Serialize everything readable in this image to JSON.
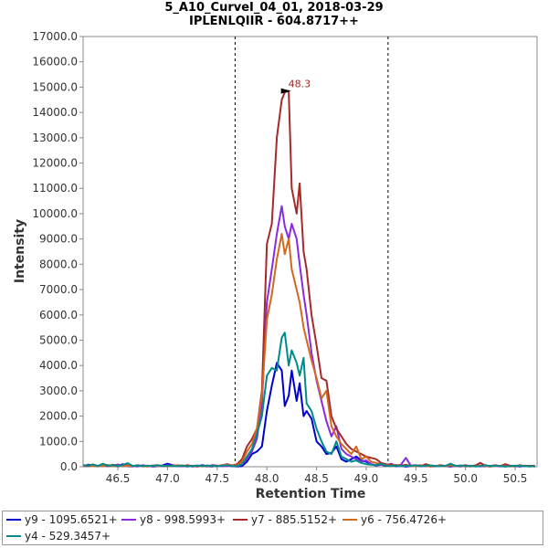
{
  "chart_data": {
    "type": "line",
    "title": "5_A10_CurveI_04_01, 2018-03-29",
    "subtitle": "IPLENLQIIR - 604.8717++",
    "xlabel": "Retention Time",
    "ylabel": "Intensity",
    "xlim": [
      46.15,
      50.72
    ],
    "ylim": [
      0,
      17000
    ],
    "xticks": [
      46.5,
      47.0,
      47.5,
      48.0,
      48.5,
      49.0,
      49.5,
      50.0,
      50.5
    ],
    "yticks": [
      0,
      1000,
      2000,
      3000,
      4000,
      5000,
      6000,
      7000,
      8000,
      9000,
      10000,
      11000,
      12000,
      13000,
      14000,
      15000,
      16000,
      17000
    ],
    "xtick_labels": [
      "46.5",
      "47.0",
      "47.5",
      "48.0",
      "48.5",
      "49.0",
      "49.5",
      "50.0",
      "50.5"
    ],
    "ytick_labels": [
      "0.0",
      "1000.0",
      "2000.0",
      "3000.0",
      "4000.0",
      "5000.0",
      "6000.0",
      "7000.0",
      "8000.0",
      "9000.0",
      "10000.0",
      "11000.0",
      "12000.0",
      "13000.0",
      "14000.0",
      "15000.0",
      "16000.0",
      "17000.0"
    ],
    "vlines": [
      47.68,
      49.22
    ],
    "annotation": {
      "text": "48.3",
      "x": 48.28,
      "y": 14850
    },
    "series": [
      {
        "name": "y9 - 1095.6521+",
        "color": "#0000cc",
        "x": [
          46.15,
          46.2,
          46.25,
          46.3,
          46.35,
          46.4,
          46.45,
          46.5,
          46.55,
          46.6,
          46.65,
          46.7,
          46.75,
          46.8,
          46.85,
          46.9,
          46.95,
          47.0,
          47.05,
          47.1,
          47.15,
          47.2,
          47.25,
          47.3,
          47.35,
          47.4,
          47.45,
          47.5,
          47.55,
          47.6,
          47.65,
          47.7,
          47.75,
          47.8,
          47.85,
          47.9,
          47.95,
          48.0,
          48.05,
          48.1,
          48.15,
          48.18,
          48.22,
          48.25,
          48.3,
          48.33,
          48.37,
          48.4,
          48.45,
          48.5,
          48.55,
          48.6,
          48.65,
          48.7,
          48.75,
          48.8,
          48.85,
          48.9,
          48.95,
          49.0,
          49.05,
          49.1,
          49.15,
          49.2,
          49.25,
          49.3,
          49.35,
          49.4,
          49.45,
          49.5,
          49.55,
          49.6,
          49.65,
          49.7,
          49.75,
          49.8,
          49.85,
          49.9,
          49.95,
          50.0,
          50.05,
          50.1,
          50.15,
          50.2,
          50.25,
          50.3,
          50.35,
          50.4,
          50.45,
          50.5,
          50.55,
          50.6,
          50.65,
          50.7
        ],
        "values": [
          20,
          80,
          50,
          30,
          90,
          40,
          60,
          20,
          100,
          30,
          10,
          60,
          20,
          40,
          10,
          20,
          50,
          120,
          60,
          30,
          20,
          40,
          10,
          30,
          60,
          20,
          10,
          40,
          30,
          60,
          20,
          10,
          30,
          200,
          500,
          600,
          800,
          2200,
          3200,
          4100,
          3800,
          2400,
          2800,
          3800,
          2600,
          3300,
          2000,
          2200,
          1900,
          1000,
          800,
          500,
          550,
          800,
          300,
          200,
          300,
          400,
          250,
          200,
          100,
          50,
          80,
          30,
          60,
          20,
          40,
          10,
          30,
          60,
          20,
          40,
          10,
          20,
          50,
          30,
          10,
          40,
          20,
          30,
          10,
          50,
          30,
          20,
          10,
          40,
          20,
          10,
          30,
          20,
          10,
          40,
          20,
          30
        ]
      },
      {
        "name": "y8 - 998.5993+",
        "color": "#8a2be2",
        "x": [
          46.15,
          46.2,
          46.25,
          46.3,
          46.35,
          46.4,
          46.45,
          46.5,
          46.55,
          46.6,
          46.65,
          46.7,
          46.75,
          46.8,
          46.85,
          46.9,
          46.95,
          47.0,
          47.05,
          47.1,
          47.15,
          47.2,
          47.25,
          47.3,
          47.35,
          47.4,
          47.45,
          47.5,
          47.55,
          47.6,
          47.65,
          47.7,
          47.75,
          47.8,
          47.85,
          47.9,
          47.95,
          48.0,
          48.05,
          48.1,
          48.15,
          48.18,
          48.22,
          48.25,
          48.3,
          48.33,
          48.37,
          48.4,
          48.45,
          48.5,
          48.55,
          48.6,
          48.65,
          48.7,
          48.75,
          48.8,
          48.85,
          48.9,
          48.95,
          49.0,
          49.05,
          49.1,
          49.15,
          49.2,
          49.25,
          49.3,
          49.35,
          49.4,
          49.45,
          49.5,
          49.55,
          49.6,
          49.65,
          49.7,
          49.75,
          49.8,
          49.85,
          49.9,
          49.95,
          50.0,
          50.05,
          50.1,
          50.15,
          50.2,
          50.25,
          50.3,
          50.35,
          50.4,
          50.45,
          50.5,
          50.55,
          50.6,
          50.65,
          50.7
        ],
        "values": [
          30,
          50,
          80,
          20,
          60,
          30,
          40,
          90,
          20,
          50,
          30,
          10,
          60,
          20,
          30,
          40,
          20,
          60,
          40,
          20,
          30,
          10,
          40,
          20,
          30,
          10,
          60,
          40,
          20,
          30,
          50,
          20,
          100,
          300,
          600,
          1100,
          2500,
          6500,
          7800,
          9200,
          10300,
          9500,
          9000,
          9600,
          9000,
          8000,
          6800,
          6000,
          4500,
          3400,
          2600,
          1800,
          1200,
          1600,
          700,
          500,
          400,
          300,
          200,
          250,
          100,
          60,
          80,
          50,
          120,
          40,
          80,
          350,
          40,
          60,
          30,
          20,
          50,
          30,
          40,
          20,
          60,
          30,
          10,
          40,
          20,
          30,
          10,
          50,
          20,
          40,
          10,
          30,
          20,
          10,
          40,
          20,
          30,
          10
        ]
      },
      {
        "name": "y7 - 885.5152+",
        "color": "#a52a2a",
        "x": [
          46.15,
          46.2,
          46.25,
          46.3,
          46.35,
          46.4,
          46.45,
          46.5,
          46.55,
          46.6,
          46.65,
          46.7,
          46.75,
          46.8,
          46.85,
          46.9,
          46.95,
          47.0,
          47.05,
          47.1,
          47.15,
          47.2,
          47.25,
          47.3,
          47.35,
          47.4,
          47.45,
          47.5,
          47.55,
          47.6,
          47.65,
          47.7,
          47.75,
          47.8,
          47.85,
          47.9,
          47.95,
          48.0,
          48.05,
          48.1,
          48.15,
          48.18,
          48.22,
          48.25,
          48.3,
          48.33,
          48.37,
          48.4,
          48.45,
          48.5,
          48.55,
          48.6,
          48.65,
          48.7,
          48.75,
          48.8,
          48.85,
          48.9,
          48.95,
          49.0,
          49.05,
          49.1,
          49.15,
          49.2,
          49.25,
          49.3,
          49.35,
          49.4,
          49.45,
          49.5,
          49.55,
          49.6,
          49.65,
          49.7,
          49.75,
          49.8,
          49.85,
          49.9,
          49.95,
          50.0,
          50.05,
          50.1,
          50.15,
          50.2,
          50.25,
          50.3,
          50.35,
          50.4,
          50.45,
          50.5,
          50.55,
          50.6,
          50.65,
          50.7
        ],
        "values": [
          40,
          20,
          60,
          30,
          50,
          20,
          80,
          30,
          40,
          60,
          20,
          50,
          30,
          10,
          40,
          60,
          20,
          30,
          50,
          40,
          20,
          60,
          30,
          10,
          40,
          20,
          50,
          30,
          60,
          100,
          50,
          100,
          300,
          800,
          1100,
          1500,
          3000,
          8800,
          9600,
          13000,
          14500,
          14800,
          14850,
          11000,
          10000,
          11200,
          8500,
          7800,
          6000,
          4800,
          3500,
          3400,
          2000,
          1500,
          1200,
          900,
          700,
          600,
          500,
          400,
          350,
          300,
          150,
          100,
          80,
          60,
          40,
          80,
          30,
          50,
          20,
          100,
          40,
          30,
          60,
          20,
          80,
          40,
          30,
          60,
          20,
          50,
          150,
          40,
          30,
          60,
          20,
          100,
          40,
          30,
          60,
          20,
          40,
          30
        ]
      },
      {
        "name": "y6 - 756.4726+",
        "color": "#d2691e",
        "x": [
          46.15,
          46.2,
          46.25,
          46.3,
          46.35,
          46.4,
          46.45,
          46.5,
          46.55,
          46.6,
          46.65,
          46.7,
          46.75,
          46.8,
          46.85,
          46.9,
          46.95,
          47.0,
          47.05,
          47.1,
          47.15,
          47.2,
          47.25,
          47.3,
          47.35,
          47.4,
          47.45,
          47.5,
          47.55,
          47.6,
          47.65,
          47.7,
          47.75,
          47.8,
          47.85,
          47.9,
          47.95,
          48.0,
          48.05,
          48.1,
          48.15,
          48.18,
          48.22,
          48.25,
          48.3,
          48.33,
          48.37,
          48.4,
          48.45,
          48.5,
          48.55,
          48.6,
          48.65,
          48.7,
          48.75,
          48.8,
          48.85,
          48.9,
          48.95,
          49.0,
          49.05,
          49.1,
          49.15,
          49.2,
          49.25,
          49.3,
          49.35,
          49.4,
          49.45,
          49.5,
          49.55,
          49.6,
          49.65,
          49.7,
          49.75,
          49.8,
          49.85,
          49.9,
          49.95,
          50.0,
          50.05,
          50.1,
          50.15,
          50.2,
          50.25,
          50.3,
          50.35,
          50.4,
          50.45,
          50.5,
          50.55,
          50.6,
          50.65,
          50.7
        ],
        "values": [
          30,
          60,
          20,
          40,
          30,
          70,
          20,
          50,
          30,
          40,
          20,
          60,
          10,
          30,
          50,
          20,
          40,
          30,
          20,
          60,
          40,
          20,
          30,
          50,
          10,
          40,
          20,
          30,
          60,
          80,
          40,
          60,
          200,
          600,
          900,
          1500,
          2800,
          5800,
          6800,
          8200,
          9200,
          8400,
          9000,
          7800,
          7000,
          6500,
          5500,
          5000,
          4200,
          3500,
          2700,
          3000,
          1600,
          1200,
          900,
          700,
          500,
          800,
          300,
          400,
          200,
          150,
          100,
          60,
          40,
          80,
          30,
          50,
          20,
          40,
          60,
          30,
          10,
          40,
          20,
          30,
          50,
          20,
          40,
          10,
          30,
          20,
          50,
          30,
          10,
          40,
          20,
          30,
          10,
          20,
          40,
          30,
          20,
          10
        ]
      },
      {
        "name": "y4 - 529.3457+",
        "color": "#008b8b",
        "x": [
          46.15,
          46.2,
          46.25,
          46.3,
          46.35,
          46.4,
          46.45,
          46.5,
          46.55,
          46.6,
          46.65,
          46.7,
          46.75,
          46.8,
          46.85,
          46.9,
          46.95,
          47.0,
          47.05,
          47.1,
          47.15,
          47.2,
          47.25,
          47.3,
          47.35,
          47.4,
          47.45,
          47.5,
          47.55,
          47.6,
          47.65,
          47.7,
          47.75,
          47.8,
          47.85,
          47.9,
          47.95,
          48.0,
          48.05,
          48.1,
          48.15,
          48.18,
          48.22,
          48.25,
          48.3,
          48.33,
          48.37,
          48.4,
          48.45,
          48.5,
          48.55,
          48.6,
          48.65,
          48.7,
          48.75,
          48.8,
          48.85,
          48.9,
          48.95,
          49.0,
          49.05,
          49.1,
          49.15,
          49.2,
          49.25,
          49.3,
          49.35,
          49.4,
          49.45,
          49.5,
          49.55,
          49.6,
          49.65,
          49.7,
          49.75,
          49.8,
          49.85,
          49.9,
          49.95,
          50.0,
          50.05,
          50.1,
          50.15,
          50.2,
          50.25,
          50.3,
          50.35,
          50.4,
          50.45,
          50.5,
          50.55,
          50.6,
          50.65,
          50.7
        ],
        "values": [
          60,
          40,
          90,
          30,
          120,
          40,
          60,
          30,
          70,
          140,
          30,
          50,
          20,
          40,
          30,
          60,
          20,
          40,
          30,
          20,
          50,
          10,
          30,
          40,
          20,
          50,
          30,
          20,
          40,
          60,
          30,
          20,
          100,
          400,
          700,
          1300,
          2000,
          3600,
          3900,
          3800,
          5100,
          5300,
          4000,
          4600,
          4100,
          3600,
          4300,
          2500,
          2200,
          1500,
          1000,
          600,
          500,
          1000,
          400,
          300,
          200,
          250,
          150,
          100,
          80,
          60,
          120,
          40,
          30,
          50,
          20,
          40,
          30,
          60,
          20,
          40,
          50,
          30,
          20,
          40,
          120,
          30,
          50,
          20,
          40,
          10,
          30,
          60,
          20,
          40,
          30,
          10,
          20,
          40,
          30,
          20,
          10,
          30
        ]
      }
    ]
  },
  "legend": {
    "items": [
      "y9 - 1095.6521+",
      "y8 - 998.5993+",
      "y7 - 885.5152+",
      "y6 - 756.4726+",
      "y4 - 529.3457+"
    ],
    "colors": [
      "#0000cc",
      "#8a2be2",
      "#a52a2a",
      "#d2691e",
      "#008b8b"
    ]
  }
}
